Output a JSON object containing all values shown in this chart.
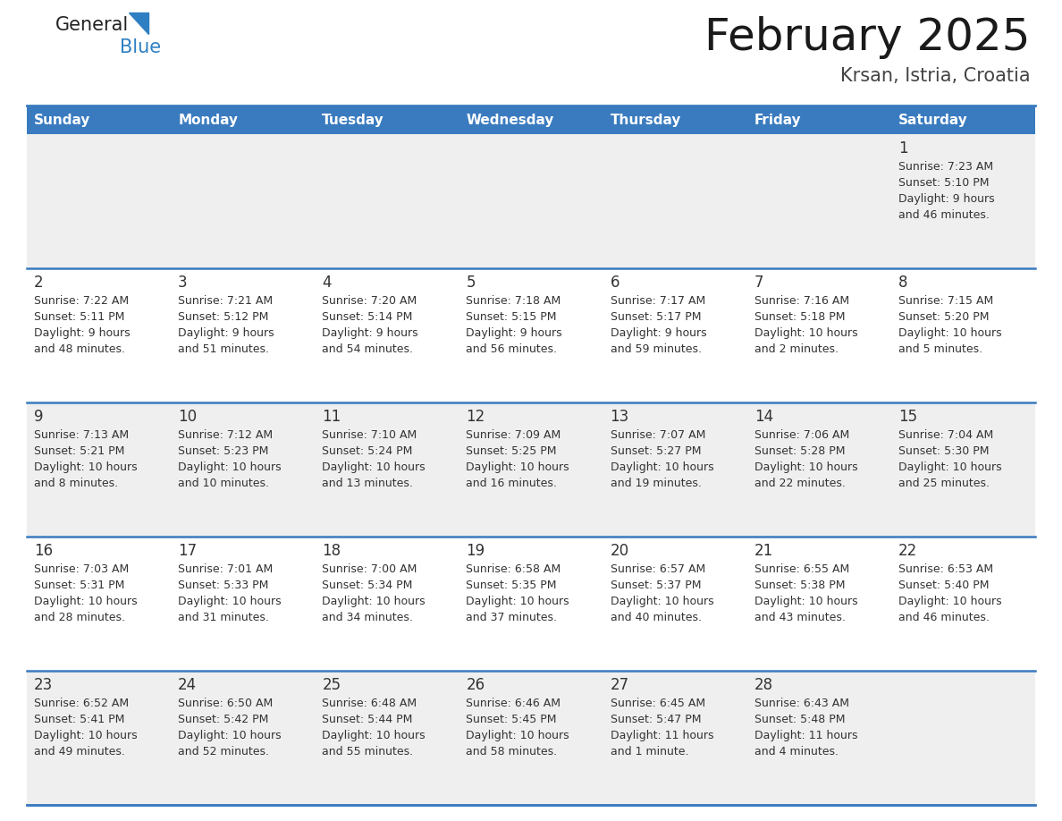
{
  "title": "February 2025",
  "subtitle": "Krsan, Istria, Croatia",
  "days_of_week": [
    "Sunday",
    "Monday",
    "Tuesday",
    "Wednesday",
    "Thursday",
    "Friday",
    "Saturday"
  ],
  "header_bg": "#3a7bbf",
  "header_text": "#ffffff",
  "row_bg_odd": "#efefef",
  "row_bg_even": "#ffffff",
  "separator_color": "#3a7bbf",
  "text_color": "#333333",
  "logo_general_color": "#222222",
  "logo_blue_color": "#2e7fc2",
  "logo_triangle_color": "#2e7fc2",
  "title_fontsize": 36,
  "subtitle_fontsize": 15,
  "header_fontsize": 11,
  "day_num_fontsize": 12,
  "cell_text_fontsize": 9,
  "calendar_data": [
    [
      {
        "day": null,
        "sunrise": null,
        "sunset": null,
        "daylight_line1": null,
        "daylight_line2": null
      },
      {
        "day": null,
        "sunrise": null,
        "sunset": null,
        "daylight_line1": null,
        "daylight_line2": null
      },
      {
        "day": null,
        "sunrise": null,
        "sunset": null,
        "daylight_line1": null,
        "daylight_line2": null
      },
      {
        "day": null,
        "sunrise": null,
        "sunset": null,
        "daylight_line1": null,
        "daylight_line2": null
      },
      {
        "day": null,
        "sunrise": null,
        "sunset": null,
        "daylight_line1": null,
        "daylight_line2": null
      },
      {
        "day": null,
        "sunrise": null,
        "sunset": null,
        "daylight_line1": null,
        "daylight_line2": null
      },
      {
        "day": "1",
        "sunrise": "Sunrise: 7:23 AM",
        "sunset": "Sunset: 5:10 PM",
        "daylight_line1": "Daylight: 9 hours",
        "daylight_line2": "and 46 minutes."
      }
    ],
    [
      {
        "day": "2",
        "sunrise": "Sunrise: 7:22 AM",
        "sunset": "Sunset: 5:11 PM",
        "daylight_line1": "Daylight: 9 hours",
        "daylight_line2": "and 48 minutes."
      },
      {
        "day": "3",
        "sunrise": "Sunrise: 7:21 AM",
        "sunset": "Sunset: 5:12 PM",
        "daylight_line1": "Daylight: 9 hours",
        "daylight_line2": "and 51 minutes."
      },
      {
        "day": "4",
        "sunrise": "Sunrise: 7:20 AM",
        "sunset": "Sunset: 5:14 PM",
        "daylight_line1": "Daylight: 9 hours",
        "daylight_line2": "and 54 minutes."
      },
      {
        "day": "5",
        "sunrise": "Sunrise: 7:18 AM",
        "sunset": "Sunset: 5:15 PM",
        "daylight_line1": "Daylight: 9 hours",
        "daylight_line2": "and 56 minutes."
      },
      {
        "day": "6",
        "sunrise": "Sunrise: 7:17 AM",
        "sunset": "Sunset: 5:17 PM",
        "daylight_line1": "Daylight: 9 hours",
        "daylight_line2": "and 59 minutes."
      },
      {
        "day": "7",
        "sunrise": "Sunrise: 7:16 AM",
        "sunset": "Sunset: 5:18 PM",
        "daylight_line1": "Daylight: 10 hours",
        "daylight_line2": "and 2 minutes."
      },
      {
        "day": "8",
        "sunrise": "Sunrise: 7:15 AM",
        "sunset": "Sunset: 5:20 PM",
        "daylight_line1": "Daylight: 10 hours",
        "daylight_line2": "and 5 minutes."
      }
    ],
    [
      {
        "day": "9",
        "sunrise": "Sunrise: 7:13 AM",
        "sunset": "Sunset: 5:21 PM",
        "daylight_line1": "Daylight: 10 hours",
        "daylight_line2": "and 8 minutes."
      },
      {
        "day": "10",
        "sunrise": "Sunrise: 7:12 AM",
        "sunset": "Sunset: 5:23 PM",
        "daylight_line1": "Daylight: 10 hours",
        "daylight_line2": "and 10 minutes."
      },
      {
        "day": "11",
        "sunrise": "Sunrise: 7:10 AM",
        "sunset": "Sunset: 5:24 PM",
        "daylight_line1": "Daylight: 10 hours",
        "daylight_line2": "and 13 minutes."
      },
      {
        "day": "12",
        "sunrise": "Sunrise: 7:09 AM",
        "sunset": "Sunset: 5:25 PM",
        "daylight_line1": "Daylight: 10 hours",
        "daylight_line2": "and 16 minutes."
      },
      {
        "day": "13",
        "sunrise": "Sunrise: 7:07 AM",
        "sunset": "Sunset: 5:27 PM",
        "daylight_line1": "Daylight: 10 hours",
        "daylight_line2": "and 19 minutes."
      },
      {
        "day": "14",
        "sunrise": "Sunrise: 7:06 AM",
        "sunset": "Sunset: 5:28 PM",
        "daylight_line1": "Daylight: 10 hours",
        "daylight_line2": "and 22 minutes."
      },
      {
        "day": "15",
        "sunrise": "Sunrise: 7:04 AM",
        "sunset": "Sunset: 5:30 PM",
        "daylight_line1": "Daylight: 10 hours",
        "daylight_line2": "and 25 minutes."
      }
    ],
    [
      {
        "day": "16",
        "sunrise": "Sunrise: 7:03 AM",
        "sunset": "Sunset: 5:31 PM",
        "daylight_line1": "Daylight: 10 hours",
        "daylight_line2": "and 28 minutes."
      },
      {
        "day": "17",
        "sunrise": "Sunrise: 7:01 AM",
        "sunset": "Sunset: 5:33 PM",
        "daylight_line1": "Daylight: 10 hours",
        "daylight_line2": "and 31 minutes."
      },
      {
        "day": "18",
        "sunrise": "Sunrise: 7:00 AM",
        "sunset": "Sunset: 5:34 PM",
        "daylight_line1": "Daylight: 10 hours",
        "daylight_line2": "and 34 minutes."
      },
      {
        "day": "19",
        "sunrise": "Sunrise: 6:58 AM",
        "sunset": "Sunset: 5:35 PM",
        "daylight_line1": "Daylight: 10 hours",
        "daylight_line2": "and 37 minutes."
      },
      {
        "day": "20",
        "sunrise": "Sunrise: 6:57 AM",
        "sunset": "Sunset: 5:37 PM",
        "daylight_line1": "Daylight: 10 hours",
        "daylight_line2": "and 40 minutes."
      },
      {
        "day": "21",
        "sunrise": "Sunrise: 6:55 AM",
        "sunset": "Sunset: 5:38 PM",
        "daylight_line1": "Daylight: 10 hours",
        "daylight_line2": "and 43 minutes."
      },
      {
        "day": "22",
        "sunrise": "Sunrise: 6:53 AM",
        "sunset": "Sunset: 5:40 PM",
        "daylight_line1": "Daylight: 10 hours",
        "daylight_line2": "and 46 minutes."
      }
    ],
    [
      {
        "day": "23",
        "sunrise": "Sunrise: 6:52 AM",
        "sunset": "Sunset: 5:41 PM",
        "daylight_line1": "Daylight: 10 hours",
        "daylight_line2": "and 49 minutes."
      },
      {
        "day": "24",
        "sunrise": "Sunrise: 6:50 AM",
        "sunset": "Sunset: 5:42 PM",
        "daylight_line1": "Daylight: 10 hours",
        "daylight_line2": "and 52 minutes."
      },
      {
        "day": "25",
        "sunrise": "Sunrise: 6:48 AM",
        "sunset": "Sunset: 5:44 PM",
        "daylight_line1": "Daylight: 10 hours",
        "daylight_line2": "and 55 minutes."
      },
      {
        "day": "26",
        "sunrise": "Sunrise: 6:46 AM",
        "sunset": "Sunset: 5:45 PM",
        "daylight_line1": "Daylight: 10 hours",
        "daylight_line2": "and 58 minutes."
      },
      {
        "day": "27",
        "sunrise": "Sunrise: 6:45 AM",
        "sunset": "Sunset: 5:47 PM",
        "daylight_line1": "Daylight: 11 hours",
        "daylight_line2": "and 1 minute."
      },
      {
        "day": "28",
        "sunrise": "Sunrise: 6:43 AM",
        "sunset": "Sunset: 5:48 PM",
        "daylight_line1": "Daylight: 11 hours",
        "daylight_line2": "and 4 minutes."
      },
      {
        "day": null,
        "sunrise": null,
        "sunset": null,
        "daylight_line1": null,
        "daylight_line2": null
      }
    ]
  ]
}
